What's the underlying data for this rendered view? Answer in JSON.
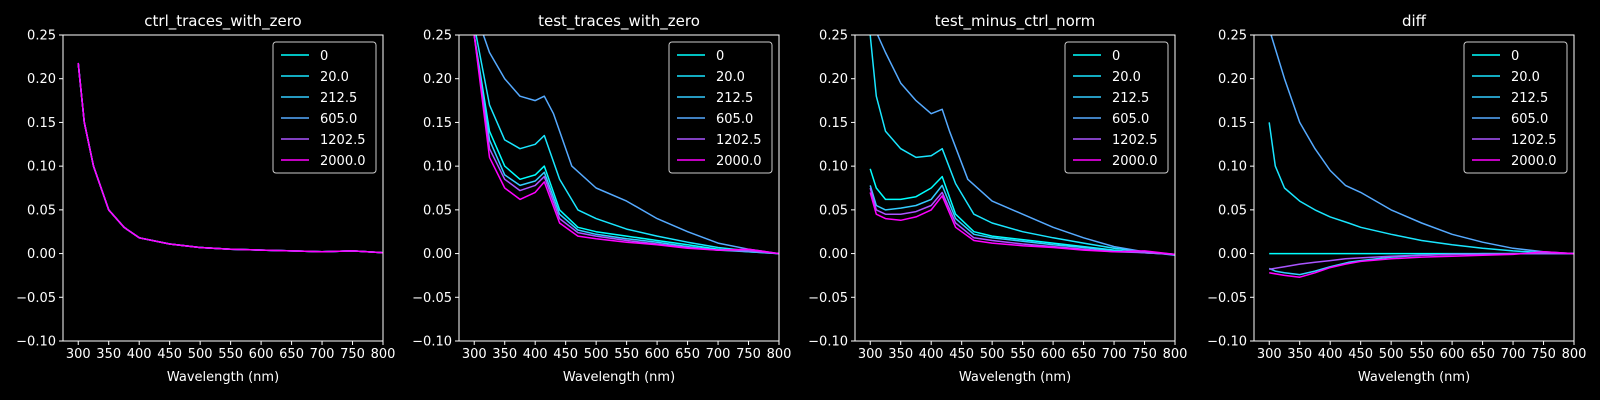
{
  "chart_data": [
    {
      "type": "line",
      "title": "ctrl_traces_with_zero",
      "xlabel": "Wavelength (nm)",
      "ylabel": "",
      "xlim": [
        275,
        800
      ],
      "ylim": [
        -0.1,
        0.25
      ],
      "xticks": [
        "300",
        "350",
        "400",
        "450",
        "500",
        "550",
        "600",
        "650",
        "700",
        "750",
        "800"
      ],
      "yticks": [
        "−0.10",
        "−0.05",
        "0.00",
        "0.05",
        "0.10",
        "0.15",
        "0.20",
        "0.25"
      ],
      "legend": "top-right",
      "grid": false,
      "series": [
        {
          "name": "0",
          "color": "#00ffff",
          "x": [
            300,
            310,
            325,
            350,
            375,
            400,
            450,
            500,
            550,
            600,
            650,
            700,
            750,
            800
          ],
          "y": [
            0.218,
            0.15,
            0.1,
            0.05,
            0.03,
            0.018,
            0.011,
            0.007,
            0.005,
            0.004,
            0.003,
            0.002,
            0.003,
            0.001
          ]
        },
        {
          "name": "20.0",
          "color": "#19e6ff",
          "x": [
            300,
            310,
            325,
            350,
            375,
            400,
            450,
            500,
            550,
            600,
            650,
            700,
            750,
            800
          ],
          "y": [
            0.218,
            0.15,
            0.1,
            0.05,
            0.03,
            0.018,
            0.011,
            0.007,
            0.005,
            0.004,
            0.003,
            0.002,
            0.003,
            0.001
          ]
        },
        {
          "name": "212.5",
          "color": "#33ccff",
          "x": [
            300,
            310,
            325,
            350,
            375,
            400,
            450,
            500,
            550,
            600,
            650,
            700,
            750,
            800
          ],
          "y": [
            0.218,
            0.15,
            0.1,
            0.05,
            0.03,
            0.018,
            0.011,
            0.007,
            0.005,
            0.004,
            0.003,
            0.002,
            0.003,
            0.001
          ]
        },
        {
          "name": "605.0",
          "color": "#55aaff",
          "x": [
            300,
            310,
            325,
            350,
            375,
            400,
            450,
            500,
            550,
            600,
            650,
            700,
            750,
            800
          ],
          "y": [
            0.218,
            0.15,
            0.1,
            0.05,
            0.03,
            0.018,
            0.011,
            0.007,
            0.005,
            0.004,
            0.003,
            0.002,
            0.003,
            0.001
          ]
        },
        {
          "name": "1202.5",
          "color": "#aa55ff",
          "x": [
            300,
            310,
            325,
            350,
            375,
            400,
            450,
            500,
            550,
            600,
            650,
            700,
            750,
            800
          ],
          "y": [
            0.218,
            0.15,
            0.1,
            0.05,
            0.03,
            0.018,
            0.011,
            0.007,
            0.005,
            0.004,
            0.003,
            0.002,
            0.003,
            0.001
          ]
        },
        {
          "name": "2000.0",
          "color": "#ff00ff",
          "x": [
            300,
            310,
            325,
            350,
            375,
            400,
            450,
            500,
            550,
            600,
            650,
            700,
            750,
            800
          ],
          "y": [
            0.218,
            0.15,
            0.1,
            0.05,
            0.03,
            0.018,
            0.011,
            0.007,
            0.005,
            0.004,
            0.003,
            0.002,
            0.003,
            0.001
          ]
        }
      ]
    },
    {
      "type": "line",
      "title": "test_traces_with_zero",
      "xlabel": "Wavelength (nm)",
      "ylabel": "",
      "xlim": [
        275,
        800
      ],
      "ylim": [
        -0.1,
        0.25
      ],
      "xticks": [
        "300",
        "350",
        "400",
        "450",
        "500",
        "550",
        "600",
        "650",
        "700",
        "750",
        "800"
      ],
      "yticks": [
        "−0.10",
        "−0.05",
        "0.00",
        "0.05",
        "0.10",
        "0.15",
        "0.20",
        "0.25"
      ],
      "legend": "top-right",
      "grid": false,
      "series": [
        {
          "name": "0",
          "color": "#00ffff",
          "x": [
            300,
            325,
            350,
            375,
            400,
            415,
            440,
            470,
            500,
            550,
            600,
            650,
            700,
            750,
            800
          ],
          "y": [
            0.25,
            0.14,
            0.1,
            0.085,
            0.09,
            0.1,
            0.05,
            0.03,
            0.025,
            0.02,
            0.015,
            0.01,
            0.005,
            0.002,
            0.0
          ]
        },
        {
          "name": "20.0",
          "color": "#19e6ff",
          "x": [
            303,
            325,
            350,
            375,
            400,
            415,
            440,
            470,
            500,
            550,
            600,
            650,
            700,
            750,
            800
          ],
          "y": [
            0.25,
            0.17,
            0.13,
            0.12,
            0.125,
            0.135,
            0.085,
            0.05,
            0.04,
            0.028,
            0.02,
            0.013,
            0.007,
            0.003,
            0.0
          ]
        },
        {
          "name": "212.5",
          "color": "#33ccff",
          "x": [
            300,
            325,
            350,
            375,
            400,
            415,
            440,
            470,
            500,
            550,
            600,
            650,
            700,
            750,
            800
          ],
          "y": [
            0.25,
            0.13,
            0.09,
            0.078,
            0.083,
            0.093,
            0.045,
            0.027,
            0.022,
            0.017,
            0.013,
            0.008,
            0.004,
            0.002,
            0.0
          ]
        },
        {
          "name": "605.0",
          "color": "#55aaff",
          "x": [
            315,
            325,
            350,
            375,
            400,
            415,
            430,
            460,
            500,
            550,
            600,
            650,
            700,
            750,
            800
          ],
          "y": [
            0.25,
            0.23,
            0.2,
            0.18,
            0.175,
            0.18,
            0.16,
            0.1,
            0.075,
            0.06,
            0.04,
            0.025,
            0.012,
            0.005,
            0.0
          ]
        },
        {
          "name": "1202.5",
          "color": "#aa55ff",
          "x": [
            300,
            325,
            350,
            375,
            400,
            415,
            440,
            470,
            500,
            550,
            600,
            650,
            700,
            750,
            800
          ],
          "y": [
            0.25,
            0.12,
            0.085,
            0.072,
            0.078,
            0.088,
            0.04,
            0.024,
            0.02,
            0.015,
            0.011,
            0.007,
            0.004,
            0.003,
            0.0
          ]
        },
        {
          "name": "2000.0",
          "color": "#ff00ff",
          "x": [
            300,
            325,
            350,
            375,
            400,
            415,
            440,
            470,
            500,
            550,
            600,
            650,
            700,
            750,
            800
          ],
          "y": [
            0.25,
            0.11,
            0.075,
            0.062,
            0.07,
            0.082,
            0.035,
            0.02,
            0.017,
            0.013,
            0.01,
            0.006,
            0.004,
            0.005,
            0.0
          ]
        }
      ]
    },
    {
      "type": "line",
      "title": "test_minus_ctrl_norm",
      "xlabel": "Wavelength (nm)",
      "ylabel": "",
      "xlim": [
        275,
        800
      ],
      "ylim": [
        -0.1,
        0.25
      ],
      "xticks": [
        "300",
        "350",
        "400",
        "450",
        "500",
        "550",
        "600",
        "650",
        "700",
        "750",
        "800"
      ],
      "yticks": [
        "−0.10",
        "−0.05",
        "0.00",
        "0.05",
        "0.10",
        "0.15",
        "0.20",
        "0.25"
      ],
      "legend": "top-right",
      "grid": false,
      "series": [
        {
          "name": "0",
          "color": "#00ffff",
          "x": [
            300,
            310,
            325,
            350,
            375,
            400,
            418,
            440,
            470,
            500,
            550,
            600,
            650,
            700,
            750,
            800
          ],
          "y": [
            0.097,
            0.075,
            0.062,
            0.062,
            0.065,
            0.075,
            0.088,
            0.045,
            0.025,
            0.02,
            0.016,
            0.012,
            0.008,
            0.004,
            0.001,
            -0.001
          ]
        },
        {
          "name": "20.0",
          "color": "#19e6ff",
          "x": [
            300,
            310,
            325,
            350,
            375,
            400,
            418,
            440,
            470,
            500,
            550,
            600,
            650,
            700,
            750,
            800
          ],
          "y": [
            0.25,
            0.18,
            0.14,
            0.12,
            0.11,
            0.112,
            0.12,
            0.08,
            0.045,
            0.035,
            0.025,
            0.018,
            0.012,
            0.006,
            0.002,
            -0.001
          ]
        },
        {
          "name": "212.5",
          "color": "#33ccff",
          "x": [
            300,
            310,
            325,
            350,
            375,
            400,
            418,
            440,
            470,
            500,
            550,
            600,
            650,
            700,
            750,
            800
          ],
          "y": [
            0.078,
            0.055,
            0.05,
            0.052,
            0.055,
            0.062,
            0.078,
            0.04,
            0.022,
            0.018,
            0.014,
            0.01,
            0.007,
            0.003,
            0.001,
            -0.001
          ]
        },
        {
          "name": "605.0",
          "color": "#55aaff",
          "x": [
            312,
            325,
            350,
            375,
            400,
            418,
            430,
            460,
            500,
            550,
            600,
            650,
            700,
            750,
            800
          ],
          "y": [
            0.25,
            0.23,
            0.195,
            0.175,
            0.16,
            0.165,
            0.14,
            0.085,
            0.06,
            0.045,
            0.03,
            0.018,
            0.008,
            0.002,
            -0.002
          ]
        },
        {
          "name": "1202.5",
          "color": "#aa55ff",
          "x": [
            300,
            310,
            325,
            350,
            375,
            400,
            418,
            440,
            470,
            500,
            550,
            600,
            650,
            700,
            750,
            800
          ],
          "y": [
            0.075,
            0.05,
            0.045,
            0.045,
            0.048,
            0.055,
            0.07,
            0.035,
            0.018,
            0.015,
            0.011,
            0.008,
            0.005,
            0.002,
            0.001,
            -0.001
          ]
        },
        {
          "name": "2000.0",
          "color": "#ff00ff",
          "x": [
            300,
            310,
            325,
            350,
            375,
            400,
            418,
            440,
            470,
            500,
            550,
            600,
            650,
            700,
            750,
            800
          ],
          "y": [
            0.07,
            0.045,
            0.04,
            0.038,
            0.042,
            0.05,
            0.066,
            0.03,
            0.015,
            0.012,
            0.009,
            0.007,
            0.004,
            0.002,
            0.003,
            -0.001
          ]
        }
      ]
    },
    {
      "type": "line",
      "title": "diff",
      "xlabel": "Wavelength (nm)",
      "ylabel": "",
      "xlim": [
        275,
        800
      ],
      "ylim": [
        -0.1,
        0.25
      ],
      "xticks": [
        "300",
        "350",
        "400",
        "450",
        "500",
        "550",
        "600",
        "650",
        "700",
        "750",
        "800"
      ],
      "yticks": [
        "−0.10",
        "−0.05",
        "0.00",
        "0.05",
        "0.10",
        "0.15",
        "0.20",
        "0.25"
      ],
      "legend": "top-right",
      "grid": false,
      "series": [
        {
          "name": "0",
          "color": "#00ffff",
          "x": [
            300,
            800
          ],
          "y": [
            0.0,
            0.0
          ]
        },
        {
          "name": "20.0",
          "color": "#19e6ff",
          "x": [
            300,
            310,
            325,
            350,
            375,
            400,
            430,
            450,
            500,
            550,
            600,
            650,
            700,
            750,
            800
          ],
          "y": [
            0.15,
            0.1,
            0.075,
            0.06,
            0.05,
            0.042,
            0.035,
            0.03,
            0.022,
            0.015,
            0.01,
            0.006,
            0.003,
            0.001,
            0.0
          ]
        },
        {
          "name": "212.5",
          "color": "#33ccff",
          "x": [
            300,
            310,
            325,
            350,
            375,
            400,
            430,
            450,
            500,
            550,
            600,
            650,
            700,
            750,
            800
          ],
          "y": [
            -0.017,
            -0.02,
            -0.022,
            -0.024,
            -0.02,
            -0.015,
            -0.01,
            -0.008,
            -0.004,
            -0.002,
            -0.001,
            0.0,
            0.0,
            0.0,
            0.0
          ]
        },
        {
          "name": "605.0",
          "color": "#55aaff",
          "x": [
            303,
            325,
            350,
            375,
            400,
            425,
            450,
            500,
            550,
            600,
            650,
            700,
            750,
            800
          ],
          "y": [
            0.25,
            0.2,
            0.15,
            0.12,
            0.095,
            0.078,
            0.07,
            0.05,
            0.035,
            0.022,
            0.013,
            0.006,
            0.002,
            0.0
          ]
        },
        {
          "name": "1202.5",
          "color": "#aa55ff",
          "x": [
            300,
            325,
            350,
            375,
            400,
            425,
            450,
            500,
            550,
            600,
            650,
            700,
            750,
            800
          ],
          "y": [
            -0.018,
            -0.015,
            -0.012,
            -0.01,
            -0.008,
            -0.006,
            -0.005,
            -0.003,
            -0.002,
            -0.001,
            -0.001,
            0.0,
            0.0,
            0.0
          ]
        },
        {
          "name": "2000.0",
          "color": "#ff00ff",
          "x": [
            300,
            325,
            350,
            375,
            400,
            425,
            450,
            500,
            550,
            600,
            650,
            700,
            750,
            800
          ],
          "y": [
            -0.022,
            -0.025,
            -0.027,
            -0.022,
            -0.016,
            -0.012,
            -0.009,
            -0.006,
            -0.004,
            -0.003,
            -0.002,
            -0.001,
            0.002,
            0.0
          ]
        }
      ]
    }
  ]
}
